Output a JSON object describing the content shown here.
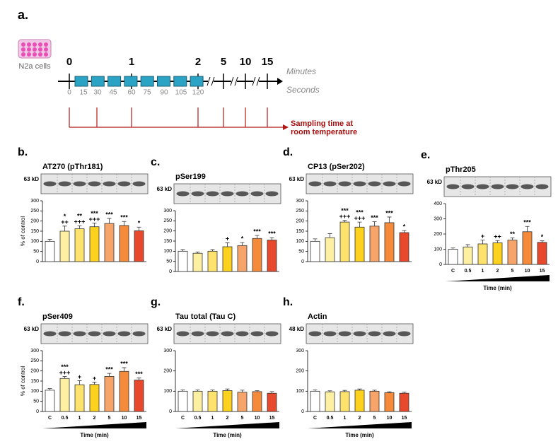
{
  "figure_label": "a.",
  "timeline": {
    "cell_label": "N2a cells",
    "minute_ticks": [
      "0",
      "1",
      "2",
      "5",
      "10",
      "15"
    ],
    "second_ticks": [
      "0",
      "15",
      "30",
      "45",
      "60",
      "75",
      "90",
      "105",
      "120"
    ],
    "minutes_label": "Minutes",
    "seconds_label": "Seconds",
    "sampling_label": "Sampling time at room temperature"
  },
  "chart_data": [
    {
      "type": "bar",
      "panel": "b.",
      "title": "AT270 (pThr181)",
      "blot_label": "63 kD",
      "ylabel": "% of control",
      "values": [
        100,
        150,
        162,
        172,
        188,
        178,
        152
      ],
      "errors": [
        10,
        25,
        15,
        18,
        25,
        20,
        18
      ],
      "annotations": [
        [],
        [
          "*",
          "++"
        ],
        [
          "**",
          "+++"
        ],
        [
          "***",
          "+++"
        ],
        [
          "***"
        ],
        [
          "***"
        ],
        [
          "*"
        ]
      ],
      "colors": [
        "#ffffff",
        "#fdf0a2",
        "#fde36e",
        "#fcd21f",
        "#f7a46a",
        "#f58a3a",
        "#e8482c"
      ],
      "ylim": [
        0,
        300
      ],
      "yticks": [
        0,
        50,
        100,
        150,
        200,
        250,
        300
      ]
    },
    {
      "type": "bar",
      "panel": "c.",
      "title": "pSer199",
      "blot_label": "63 kD",
      "values": [
        100,
        90,
        100,
        122,
        128,
        163,
        155
      ],
      "errors": [
        8,
        6,
        8,
        20,
        15,
        15,
        12
      ],
      "annotations": [
        [],
        [],
        [],
        [
          "+"
        ],
        [
          "*"
        ],
        [
          "***"
        ],
        [
          "***"
        ]
      ],
      "colors": [
        "#ffffff",
        "#fdf0a2",
        "#fde36e",
        "#fcd21f",
        "#f7a46a",
        "#f58a3a",
        "#e8482c"
      ],
      "ylim": [
        0,
        300
      ],
      "yticks": [
        0,
        50,
        100,
        150,
        200,
        250,
        300
      ]
    },
    {
      "type": "bar",
      "panel": "d.",
      "title": "CP13 (pSer202)",
      "blot_label": "63 kD",
      "values": [
        100,
        118,
        195,
        170,
        175,
        192,
        143
      ],
      "errors": [
        12,
        20,
        8,
        25,
        22,
        28,
        10
      ],
      "annotations": [
        [],
        [],
        [
          "***",
          "+++"
        ],
        [
          "***",
          "+++"
        ],
        [
          "***"
        ],
        [
          "***"
        ],
        [
          "*"
        ]
      ],
      "colors": [
        "#ffffff",
        "#fdf0a2",
        "#fde36e",
        "#fcd21f",
        "#f7a46a",
        "#f58a3a",
        "#e8482c"
      ],
      "ylim": [
        0,
        300
      ],
      "yticks": [
        0,
        50,
        100,
        150,
        200,
        250,
        300
      ]
    },
    {
      "type": "bar",
      "panel": "e.",
      "title": "pThr205",
      "blot_label": "63 kD",
      "xlabel": "Time (min)",
      "categories": [
        "C",
        "0.5",
        "1",
        "2",
        "5",
        "10",
        "15"
      ],
      "values": [
        100,
        115,
        135,
        142,
        160,
        215,
        145
      ],
      "errors": [
        8,
        15,
        25,
        15,
        15,
        35,
        10
      ],
      "annotations": [
        [],
        [],
        [
          "+"
        ],
        [
          "++"
        ],
        [
          "**"
        ],
        [
          "***"
        ],
        [
          "*"
        ]
      ],
      "colors": [
        "#ffffff",
        "#fdf0a2",
        "#fde36e",
        "#fcd21f",
        "#f7a46a",
        "#f58a3a",
        "#e8482c"
      ],
      "ylim": [
        0,
        400
      ],
      "yticks": [
        0,
        100,
        200,
        300,
        400
      ]
    },
    {
      "type": "bar",
      "panel": "f.",
      "title": "pSer409",
      "blot_label": "63 kD",
      "ylabel": "% of control",
      "xlabel": "Time (min)",
      "categories": [
        "C",
        "0.5",
        "1",
        "2",
        "5",
        "10",
        "15"
      ],
      "values": [
        105,
        163,
        132,
        133,
        173,
        198,
        155
      ],
      "errors": [
        8,
        10,
        20,
        12,
        15,
        18,
        10
      ],
      "annotations": [
        [],
        [
          "***",
          "+++"
        ],
        [
          "+"
        ],
        [
          "+"
        ],
        [
          "***"
        ],
        [
          "***"
        ],
        [
          "***"
        ]
      ],
      "colors": [
        "#ffffff",
        "#fdf0a2",
        "#fde36e",
        "#fcd21f",
        "#f7a46a",
        "#f58a3a",
        "#e8482c"
      ],
      "ylim": [
        0,
        300
      ],
      "yticks": [
        0,
        50,
        100,
        150,
        200,
        250,
        300
      ]
    },
    {
      "type": "bar",
      "panel": "g.",
      "title": "Tau total (Tau C)",
      "blot_label": "63 kD",
      "xlabel": "Time (min)",
      "categories": [
        "C",
        "0.5",
        "1",
        "2",
        "5",
        "10",
        "15"
      ],
      "values": [
        100,
        100,
        100,
        103,
        95,
        98,
        90
      ],
      "errors": [
        6,
        6,
        6,
        8,
        10,
        5,
        8
      ],
      "colors": [
        "#ffffff",
        "#fdf0a2",
        "#fde36e",
        "#fcd21f",
        "#f7a46a",
        "#f58a3a",
        "#e8482c"
      ],
      "ylim": [
        0,
        300
      ],
      "yticks": [
        0,
        100,
        200,
        300
      ]
    },
    {
      "type": "bar",
      "panel": "h.",
      "title": "Actin",
      "blot_label": "48 kD",
      "xlabel": "Time (min)",
      "categories": [
        "C",
        "0.5",
        "1",
        "2",
        "5",
        "10",
        "15"
      ],
      "values": [
        100,
        97,
        98,
        105,
        100,
        93,
        90
      ],
      "errors": [
        6,
        5,
        6,
        6,
        5,
        4,
        5
      ],
      "colors": [
        "#ffffff",
        "#fdf0a2",
        "#fde36e",
        "#fcd21f",
        "#f7a46a",
        "#f58a3a",
        "#e8482c"
      ],
      "ylim": [
        0,
        300
      ],
      "yticks": [
        0,
        100,
        200,
        300
      ]
    }
  ]
}
